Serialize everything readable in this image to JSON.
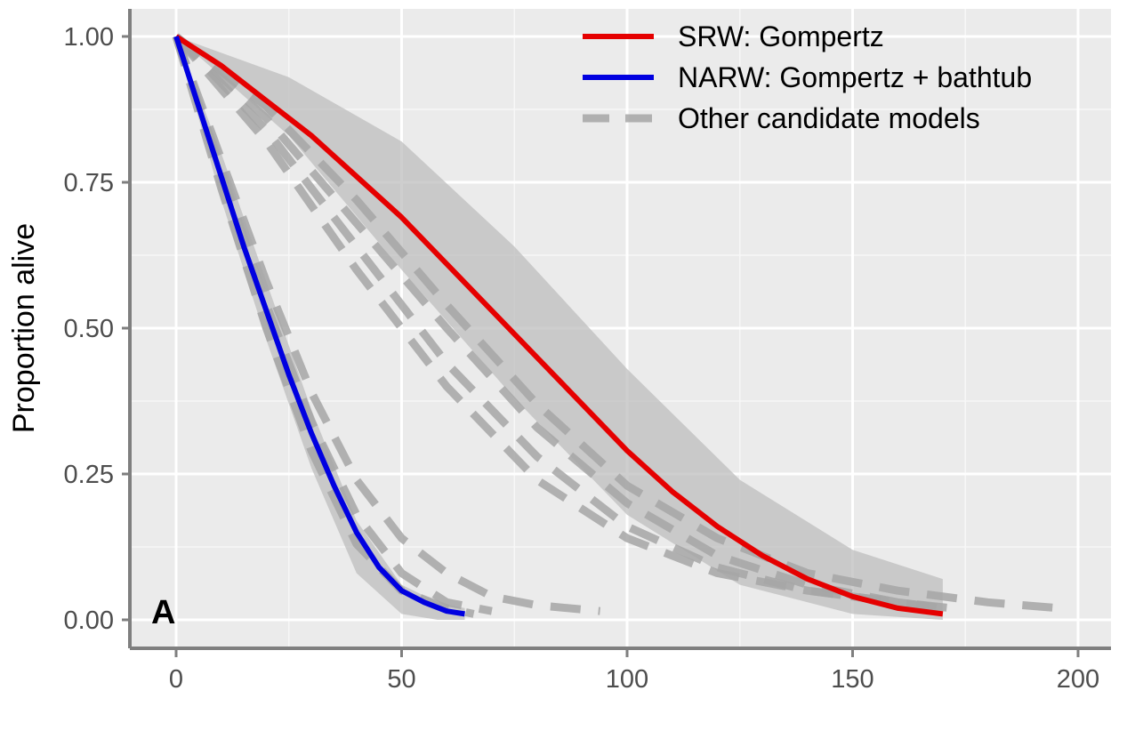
{
  "chart_data": {
    "type": "line",
    "title": "",
    "xlabel": "",
    "ylabel": "Proportion alive",
    "panel_label": "A",
    "xlim": [
      -10,
      210
    ],
    "ylim": [
      -0.05,
      1.05
    ],
    "x_ticks": [
      0,
      50,
      100,
      150,
      200
    ],
    "x_tick_labels": [
      "0",
      "50",
      "100",
      "150",
      "200"
    ],
    "y_ticks": [
      0,
      0.25,
      0.5,
      0.75,
      1.0
    ],
    "y_tick_labels": [
      "0.00",
      "0.25",
      "0.50",
      "0.75",
      "1.00"
    ],
    "grid": true,
    "legend_position": "top-right",
    "legend": [
      {
        "label": "SRW: Gompertz",
        "color": "#e50000",
        "style": "solid"
      },
      {
        "label": "NARW: Gompertz + bathtub",
        "color": "#0000e0",
        "style": "solid"
      },
      {
        "label": "Other candidate models",
        "color": "#a6a6a6",
        "style": "dashed"
      }
    ],
    "bands": [
      {
        "name": "SRW",
        "color": "#bdbdbd",
        "x": [
          0,
          25,
          50,
          75,
          100,
          125,
          150,
          170
        ],
        "upper": [
          1.0,
          0.93,
          0.82,
          0.64,
          0.43,
          0.24,
          0.12,
          0.07
        ],
        "lower": [
          1.0,
          0.83,
          0.6,
          0.38,
          0.18,
          0.06,
          0.01,
          0.0
        ]
      },
      {
        "name": "NARW",
        "color": "#bdbdbd",
        "x": [
          0,
          10,
          20,
          30,
          40,
          50,
          58,
          64
        ],
        "upper": [
          1.0,
          0.8,
          0.58,
          0.36,
          0.17,
          0.06,
          0.03,
          0.02
        ],
        "lower": [
          1.0,
          0.72,
          0.48,
          0.26,
          0.08,
          0.01,
          0.0,
          0.0
        ]
      }
    ],
    "series": [
      {
        "name": "SRW: Gompertz",
        "color": "#e50000",
        "dash": "solid",
        "x": [
          0,
          10,
          20,
          30,
          40,
          50,
          60,
          70,
          80,
          90,
          100,
          110,
          120,
          130,
          140,
          150,
          160,
          170
        ],
        "y": [
          1.0,
          0.95,
          0.89,
          0.83,
          0.76,
          0.69,
          0.61,
          0.53,
          0.45,
          0.37,
          0.29,
          0.22,
          0.16,
          0.11,
          0.07,
          0.04,
          0.02,
          0.01
        ]
      },
      {
        "name": "NARW: Gompertz + bathtub",
        "color": "#0000e0",
        "dash": "solid",
        "x": [
          0,
          5,
          10,
          15,
          20,
          25,
          30,
          35,
          40,
          45,
          50,
          55,
          60,
          64
        ],
        "y": [
          1.0,
          0.88,
          0.76,
          0.64,
          0.53,
          0.42,
          0.32,
          0.23,
          0.15,
          0.09,
          0.05,
          0.03,
          0.015,
          0.01
        ]
      },
      {
        "name": "",
        "color": "#a6a6a6",
        "dash": "dashed",
        "x": [
          0,
          20,
          40,
          60,
          80,
          100,
          120,
          140,
          160,
          180,
          196
        ],
        "y": [
          1.0,
          0.88,
          0.72,
          0.54,
          0.37,
          0.23,
          0.14,
          0.08,
          0.05,
          0.03,
          0.02
        ]
      },
      {
        "name": "",
        "color": "#a6a6a6",
        "dash": "dashed",
        "x": [
          0,
          20,
          40,
          60,
          80,
          100,
          120,
          140,
          160,
          172
        ],
        "y": [
          1.0,
          0.86,
          0.68,
          0.5,
          0.33,
          0.2,
          0.11,
          0.06,
          0.03,
          0.02
        ]
      },
      {
        "name": "",
        "color": "#a6a6a6",
        "dash": "dashed",
        "x": [
          0,
          20,
          40,
          60,
          80,
          100,
          120,
          140,
          160,
          170
        ],
        "y": [
          1.0,
          0.84,
          0.64,
          0.44,
          0.28,
          0.16,
          0.09,
          0.05,
          0.03,
          0.02
        ]
      },
      {
        "name": "",
        "color": "#a6a6a6",
        "dash": "dashed",
        "x": [
          0,
          20,
          40,
          60,
          80,
          100,
          120,
          140,
          160,
          170
        ],
        "y": [
          1.0,
          0.82,
          0.6,
          0.4,
          0.24,
          0.14,
          0.08,
          0.05,
          0.03,
          0.02
        ]
      },
      {
        "name": "",
        "color": "#a6a6a6",
        "dash": "dashed",
        "x": [
          0,
          10,
          20,
          30,
          40,
          50,
          60,
          70,
          80,
          94
        ],
        "y": [
          1.0,
          0.79,
          0.58,
          0.39,
          0.24,
          0.14,
          0.08,
          0.04,
          0.025,
          0.015
        ]
      },
      {
        "name": "",
        "color": "#a6a6a6",
        "dash": "dashed",
        "x": [
          0,
          10,
          20,
          30,
          40,
          50,
          60,
          70
        ],
        "y": [
          1.0,
          0.77,
          0.54,
          0.34,
          0.18,
          0.08,
          0.03,
          0.015
        ]
      },
      {
        "name": "",
        "color": "#a6a6a6",
        "dash": "dashed",
        "x": [
          0,
          10,
          20,
          30,
          40,
          50,
          60,
          66
        ],
        "y": [
          1.0,
          0.74,
          0.5,
          0.29,
          0.13,
          0.05,
          0.02,
          0.01
        ]
      }
    ]
  }
}
